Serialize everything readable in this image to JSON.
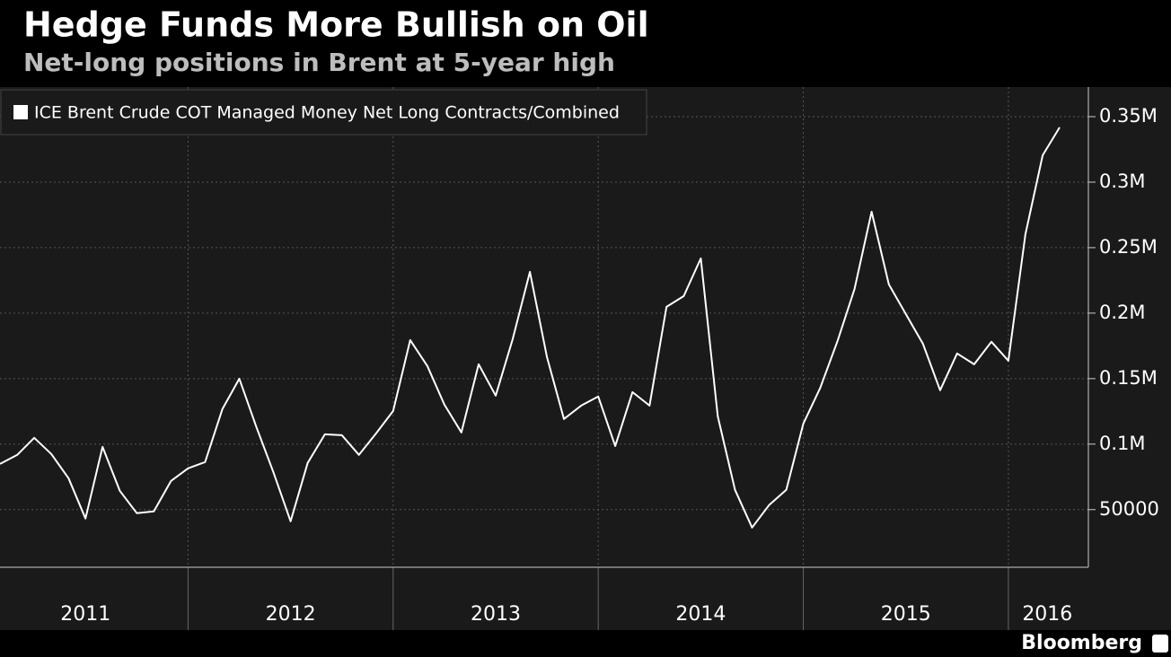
{
  "chart_data": {
    "type": "line",
    "title": "Hedge Funds More Bullish on Oil",
    "subtitle": "Net-long positions in Brent at 5-year high",
    "source": "Bloomberg",
    "x": [
      2011.083,
      2011.167,
      2011.25,
      2011.333,
      2011.417,
      2011.5,
      2011.583,
      2011.667,
      2011.75,
      2011.833,
      2011.917,
      2012,
      2012.083,
      2012.167,
      2012.25,
      2012.333,
      2012.417,
      2012.5,
      2012.583,
      2012.667,
      2012.75,
      2012.833,
      2012.917,
      2013,
      2013.083,
      2013.167,
      2013.25,
      2013.333,
      2013.417,
      2013.5,
      2013.583,
      2013.667,
      2013.75,
      2013.833,
      2013.917,
      2014,
      2014.083,
      2014.167,
      2014.25,
      2014.333,
      2014.417,
      2014.5,
      2014.583,
      2014.667,
      2014.75,
      2014.833,
      2014.917,
      2015,
      2015.083,
      2015.167,
      2015.25,
      2015.333,
      2015.417,
      2015.5,
      2015.583,
      2015.667,
      2015.75,
      2015.833,
      2015.917,
      2016,
      2016.083,
      2016.167,
      2016.25
    ],
    "series": [
      {
        "name": "ICE Brent Crude COT Managed Money Net Long Contracts/Combined",
        "color": "#ffffff",
        "values": [
          84900,
          91800,
          104800,
          92500,
          74000,
          43200,
          97900,
          64400,
          47300,
          48600,
          71900,
          81500,
          86300,
          126700,
          150000,
          113000,
          78100,
          41100,
          85600,
          107500,
          106800,
          91800,
          108200,
          125300,
          179400,
          159600,
          130100,
          108900,
          160900,
          137000,
          180100,
          231500,
          166400,
          119200,
          129400,
          136300,
          98600,
          139700,
          129400,
          204800,
          213000,
          241800,
          121200,
          65100,
          36300,
          53400,
          65100,
          115700,
          143100,
          178800,
          218500,
          277400,
          221900,
          199300,
          176700,
          141100,
          169200,
          160900,
          178100,
          163700,
          260300,
          320500,
          341800
        ]
      }
    ],
    "xlim": [
      2011.083,
      2016.39
    ],
    "xgrid": [
      2012,
      2013,
      2014,
      2015,
      2016
    ],
    "xticks": [
      {
        "value": 2011.5,
        "label": "2011"
      },
      {
        "value": 2012.5,
        "label": "2012"
      },
      {
        "value": 2013.5,
        "label": "2013"
      },
      {
        "value": 2014.5,
        "label": "2014"
      },
      {
        "value": 2015.5,
        "label": "2015"
      },
      {
        "value": 2016.19,
        "label": "2016"
      }
    ],
    "ylim": [
      6000,
      372600
    ],
    "yticks": [
      50000,
      {
        "value": 100000,
        "label": "0.1M"
      },
      {
        "value": 150000,
        "label": "0.15M"
      },
      {
        "value": 200000,
        "label": "0.2M"
      },
      {
        "value": 250000,
        "label": "0.25M"
      },
      {
        "value": 300000,
        "label": "0.3M"
      },
      {
        "value": 350000,
        "label": "0.35M"
      }
    ],
    "grid": true
  }
}
